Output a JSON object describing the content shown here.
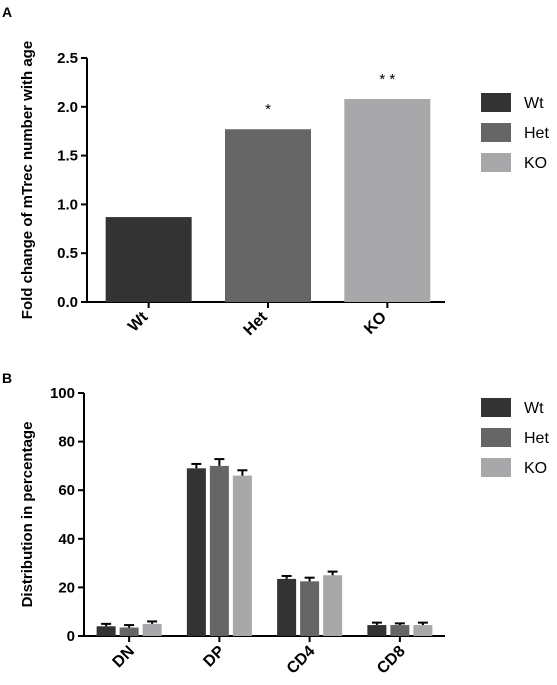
{
  "panels": [
    {
      "letter": "A"
    },
    {
      "letter": "B"
    }
  ],
  "colors": {
    "Wt": "#333333",
    "Het": "#666666",
    "KO": "#a8a8aa"
  },
  "chart_data": [
    {
      "type": "bar",
      "panel": "A",
      "ylabel": "Fold change of mTrec number with age",
      "categories": [
        "Wt",
        "Het",
        "KO"
      ],
      "values": [
        0.87,
        1.77,
        2.08
      ],
      "annotations": [
        "",
        "*",
        "* *"
      ],
      "yticks": [
        "0.0",
        "0.5",
        "1.0",
        "1.5",
        "2.0",
        "2.5"
      ],
      "ylim": [
        0,
        2.5
      ],
      "legend": [
        "Wt",
        "Het",
        "KO"
      ],
      "legend_position": "right",
      "grid": false
    },
    {
      "type": "bar",
      "panel": "B",
      "ylabel": "Distribution in percentage",
      "categories": [
        "DN",
        "DP",
        "CD4",
        "CD8"
      ],
      "series": [
        {
          "name": "Wt",
          "values": [
            4,
            69,
            23.5,
            4.5
          ],
          "errors": [
            1,
            1.8,
            1.2,
            1
          ]
        },
        {
          "name": "Het",
          "values": [
            3.5,
            70,
            22.5,
            4.5
          ],
          "errors": [
            1,
            2.8,
            1.5,
            0.7
          ]
        },
        {
          "name": "KO",
          "values": [
            5,
            66,
            25,
            4.5
          ],
          "errors": [
            1,
            2.2,
            1.5,
            1
          ]
        }
      ],
      "yticks": [
        "0",
        "20",
        "40",
        "60",
        "80",
        "100"
      ],
      "ylim": [
        0,
        100
      ],
      "legend": [
        "Wt",
        "Het",
        "KO"
      ],
      "legend_position": "right",
      "grid": false
    }
  ]
}
